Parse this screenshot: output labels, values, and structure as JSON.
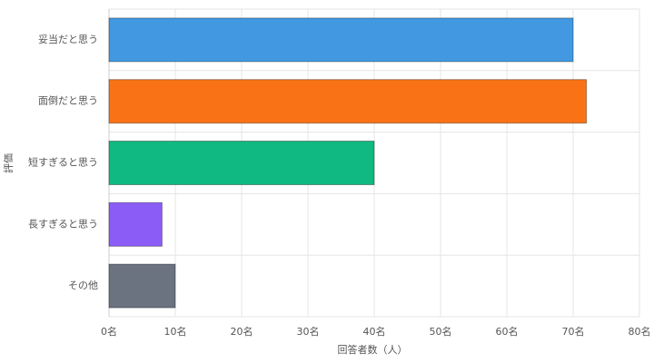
{
  "chart_data": {
    "type": "hbar",
    "categories": [
      "妥当だと思う",
      "面倒だと思う",
      "短すぎると思う",
      "長すぎると思う",
      "その他"
    ],
    "values": [
      70,
      72,
      40,
      8,
      10
    ],
    "colors": [
      "#4299e1",
      "#f97316",
      "#10b981",
      "#8b5cf6",
      "#6b7280"
    ],
    "xlim": [
      0,
      80
    ],
    "xticks": [
      {
        "value": 0,
        "label": "0名"
      },
      {
        "value": 10,
        "label": "10名"
      },
      {
        "value": 20,
        "label": "20名"
      },
      {
        "value": 30,
        "label": "30名"
      },
      {
        "value": 40,
        "label": "40名"
      },
      {
        "value": 50,
        "label": "50名"
      },
      {
        "value": 60,
        "label": "60名"
      },
      {
        "value": 70,
        "label": "70名"
      },
      {
        "value": 80,
        "label": "80名"
      }
    ],
    "x_label": "回答者数（人）",
    "y_label": "評価",
    "grid": true
  }
}
